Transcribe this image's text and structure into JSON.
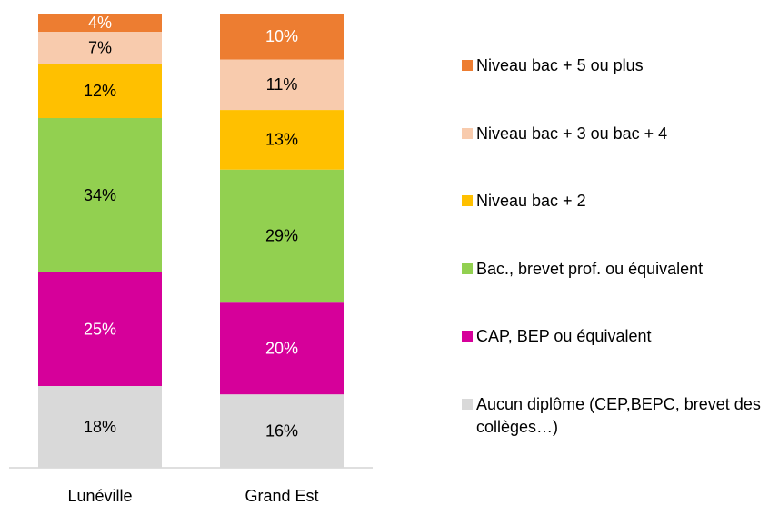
{
  "chart_data": {
    "type": "stacked_bar",
    "categories": [
      "Lunéville",
      "Grand Est"
    ],
    "series": [
      {
        "name": "Aucun diplôme (CEP,BEPC, brevet des collèges…)",
        "color": "#d9d9d9",
        "label_color": "#000000",
        "values": [
          18,
          16
        ],
        "value_labels": [
          "18%",
          "16%"
        ]
      },
      {
        "name": "CAP, BEP ou équivalent",
        "color": "#d6009a",
        "label_color": "#ffffff",
        "values": [
          25,
          20
        ],
        "value_labels": [
          "25%",
          "20%"
        ]
      },
      {
        "name": "Bac., brevet prof. ou équivalent",
        "color": "#92d050",
        "label_color": "#000000",
        "values": [
          34,
          29
        ],
        "value_labels": [
          "34%",
          "29%"
        ]
      },
      {
        "name": "Niveau bac + 2",
        "color": "#ffc000",
        "label_color": "#000000",
        "values": [
          12,
          13
        ],
        "value_labels": [
          "12%",
          "13%"
        ]
      },
      {
        "name": "Niveau bac + 3 ou bac + 4",
        "color": "#f8cbad",
        "label_color": "#000000",
        "values": [
          7,
          11
        ],
        "value_labels": [
          "7%",
          "11%"
        ]
      },
      {
        "name": "Niveau bac + 5 ou plus",
        "color": "#ed7d31",
        "label_color": "#ffffff",
        "values": [
          4,
          10
        ],
        "value_labels": [
          "4%",
          "10%"
        ]
      }
    ],
    "legend": "right"
  }
}
